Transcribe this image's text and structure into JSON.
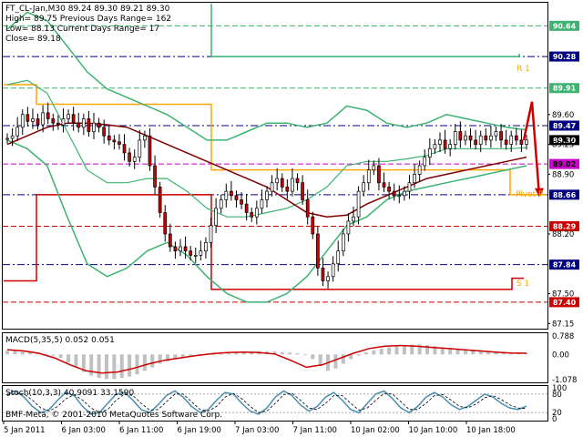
{
  "header": {
    "line1": "FT_CL-Jan,M30  89.24 89.30 89.21 89.30",
    "line2": "High= 89.75   Previous Days Range= 162",
    "line3": "Low= 88.13   Current Days Range= 17",
    "line4": "Close= 89.18"
  },
  "footer": {
    "copyright": "BMF-Meta, © 2001-2010 MetaQuotes Software Corp."
  },
  "pivot_labels": {
    "r1": "R 1",
    "pivot": "Pivot P",
    "s1": "S 1"
  },
  "colors": {
    "candle": "#000000",
    "down_candle": "#cc0000",
    "bollinger": "#3cb371",
    "ma": "#800000",
    "pivot": "#ffa500",
    "level_red": "#cc0000",
    "level_green": "#3cb371",
    "level_blue": "#000080",
    "level_purple": "#cc00cc",
    "tag_black": "#000000",
    "macd_hist": "#c0c0c0",
    "macd_signal": "#cc0000",
    "stoch_main": "#4a8fb0"
  },
  "chart_data": [
    {
      "type": "candlestick",
      "title": "FT_CL-Jan,M30",
      "ylim": [
        87.1,
        90.9
      ],
      "x_tick_labels": [
        "5 Jan 2011",
        "6 Jan 03:00",
        "6 Jan 11:00",
        "6 Jan 19:00",
        "7 Jan 03:00",
        "7 Jan 11:00",
        "10 Jan 02:00",
        "10 Jan 10:00",
        "10 Jan 18:00"
      ],
      "y_tick_labels": [
        {
          "label": "90.64",
          "value": 90.64,
          "style": "green"
        },
        {
          "label": "90.28",
          "value": 90.28,
          "style": "blue"
        },
        {
          "label": "89.91",
          "value": 89.91,
          "style": "green"
        },
        {
          "label": "89.60",
          "value": 89.6,
          "style": "plain"
        },
        {
          "label": "89.47",
          "value": 89.47,
          "style": "blue"
        },
        {
          "label": "89.30",
          "value": 89.3,
          "style": "black"
        },
        {
          "label": "89.25",
          "value": 89.25,
          "style": "plain"
        },
        {
          "label": "89.02",
          "value": 89.02,
          "style": "purple"
        },
        {
          "label": "88.90",
          "value": 88.9,
          "style": "plain"
        },
        {
          "label": "88.66",
          "value": 88.66,
          "style": "blue"
        },
        {
          "label": "88.29",
          "value": 88.29,
          "style": "red"
        },
        {
          "label": "88.20",
          "value": 88.2,
          "style": "plain"
        },
        {
          "label": "87.84",
          "value": 87.84,
          "style": "blue"
        },
        {
          "label": "87.50",
          "value": 87.5,
          "style": "plain"
        },
        {
          "label": "87.40",
          "value": 87.4,
          "style": "red"
        },
        {
          "label": "87.15",
          "value": 87.15,
          "style": "plain"
        }
      ],
      "close": [
        89.32,
        89.35,
        89.45,
        89.6,
        89.52,
        89.55,
        89.48,
        89.62,
        89.55,
        89.5,
        89.48,
        89.55,
        89.6,
        89.5,
        89.45,
        89.55,
        89.4,
        89.5,
        89.45,
        89.35,
        89.3,
        89.28,
        89.25,
        89.15,
        89.05,
        89.1,
        89.3,
        89.35,
        89.0,
        88.75,
        88.45,
        88.2,
        88.05,
        88.0,
        88.05,
        88.0,
        87.95,
        87.95,
        88.0,
        88.1,
        88.3,
        88.5,
        88.6,
        88.7,
        88.65,
        88.6,
        88.55,
        88.45,
        88.4,
        88.5,
        88.6,
        88.7,
        88.8,
        88.85,
        88.75,
        88.7,
        88.85,
        88.8,
        88.6,
        88.4,
        88.2,
        87.8,
        87.65,
        87.7,
        87.85,
        88.0,
        88.2,
        88.35,
        88.4,
        88.7,
        88.8,
        88.95,
        89.0,
        88.8,
        88.75,
        88.7,
        88.65,
        88.65,
        88.7,
        88.8,
        88.9,
        89.0,
        89.1,
        89.2,
        89.25,
        89.3,
        89.2,
        89.25,
        89.4,
        89.3,
        89.35,
        89.3,
        89.25,
        89.35,
        89.3,
        89.35,
        89.4,
        89.3,
        89.25,
        89.35,
        89.3,
        89.25,
        89.3
      ],
      "bollinger_upper": [
        90.6,
        90.8,
        90.7,
        90.4,
        90.1,
        89.9,
        89.8,
        89.7,
        89.6,
        89.45,
        89.3,
        89.3,
        89.4,
        89.5,
        89.5,
        89.45,
        89.5,
        89.7,
        89.65,
        89.5,
        89.45,
        89.5,
        89.6,
        89.55,
        89.5,
        89.45,
        89.42
      ],
      "bollinger_lower": [
        89.3,
        89.2,
        89.0,
        88.4,
        87.85,
        87.7,
        87.8,
        88.0,
        88.1,
        87.95,
        87.7,
        87.5,
        87.4,
        87.4,
        87.5,
        87.7,
        88.0,
        88.3,
        88.4,
        88.6,
        88.7,
        88.75,
        88.8,
        88.85,
        88.9,
        88.95,
        89.0
      ],
      "bollinger_middle": [
        89.95,
        90.0,
        89.85,
        89.4,
        88.95,
        88.8,
        88.8,
        88.85,
        88.85,
        88.7,
        88.5,
        88.4,
        88.4,
        88.45,
        88.5,
        88.6,
        88.75,
        89.0,
        89.05,
        89.05,
        89.08,
        89.12,
        89.2,
        89.2,
        89.2,
        89.2,
        89.21
      ],
      "ma": [
        89.25,
        89.35,
        89.45,
        89.5,
        89.5,
        89.48,
        89.45,
        89.35,
        89.25,
        89.15,
        89.05,
        88.95,
        88.85,
        88.75,
        88.6,
        88.45,
        88.4,
        88.42,
        88.55,
        88.65,
        88.75,
        88.85,
        88.9,
        88.95,
        89.0,
        89.05,
        89.1
      ],
      "forecast_arrow": [
        89.3,
        89.75,
        88.65
      ],
      "levels": {
        "r1": 90.28,
        "pivot": 89.47,
        "s1": 87.55
      }
    },
    {
      "type": "histogram",
      "title": "MACD(5,35,5) 0.052 0.051",
      "ylim": [
        -1.078,
        0.788
      ],
      "y_tick_labels": [
        "0.788",
        "0.00",
        "-1.078"
      ],
      "histogram": [
        0.15,
        0.14,
        0.12,
        0.1,
        0.06,
        0.02,
        -0.05,
        -0.15,
        -0.35,
        -0.55,
        -0.75,
        -0.9,
        -1.0,
        -1.05,
        -1.05,
        -1.0,
        -0.95,
        -0.85,
        -0.7,
        -0.55,
        -0.4,
        -0.3,
        -0.2,
        -0.15,
        -0.1,
        -0.05,
        -0.02,
        0.0,
        0.02,
        0.05,
        0.08,
        0.1,
        0.12,
        0.13,
        0.13,
        0.12,
        0.1,
        0.08,
        0.05,
        0.0,
        -0.2,
        -0.5,
        -0.7,
        -0.6,
        -0.4,
        -0.2,
        -0.05,
        0.08,
        0.18,
        0.25,
        0.3,
        0.35,
        0.4,
        0.42,
        0.42,
        0.4,
        0.35,
        0.3,
        0.28,
        0.25,
        0.22,
        0.2,
        0.18,
        0.15,
        0.12,
        0.1,
        0.08,
        0.06,
        0.05
      ],
      "signal": [
        0.2,
        0.15,
        0.05,
        -0.15,
        -0.45,
        -0.7,
        -0.8,
        -0.75,
        -0.6,
        -0.4,
        -0.25,
        -0.15,
        -0.05,
        0.03,
        0.08,
        0.1,
        0.08,
        0.02,
        -0.25,
        -0.55,
        -0.45,
        -0.2,
        0.05,
        0.25,
        0.35,
        0.38,
        0.35,
        0.3,
        0.25,
        0.2,
        0.15,
        0.1,
        0.06,
        0.05
      ]
    },
    {
      "type": "line",
      "title": "Stoch(10,3,3) 40.9091 33.1590",
      "ylim": [
        0,
        100
      ],
      "y_tick_labels": [
        "100",
        "80",
        "20",
        "0"
      ],
      "main": [
        80,
        90,
        70,
        40,
        20,
        30,
        60,
        85,
        75,
        40,
        15,
        20,
        50,
        80,
        85,
        60,
        30,
        20,
        45,
        75,
        90,
        70,
        40,
        20,
        30,
        60,
        85,
        80,
        50,
        25,
        15,
        35,
        70,
        90,
        75,
        45,
        25,
        40,
        70,
        85,
        60,
        30,
        20,
        50,
        80,
        90,
        65,
        35,
        20,
        40,
        70,
        85,
        70,
        45,
        30,
        40,
        60,
        80,
        70,
        50,
        35,
        30,
        41
      ],
      "signal": [
        75,
        82,
        80,
        60,
        35,
        25,
        40,
        65,
        78,
        60,
        35,
        20,
        30,
        60,
        80,
        75,
        50,
        28,
        30,
        55,
        80,
        80,
        55,
        30,
        25,
        40,
        70,
        82,
        65,
        40,
        20,
        25,
        50,
        78,
        82,
        60,
        35,
        30,
        50,
        75,
        75,
        50,
        28,
        35,
        60,
        82,
        80,
        55,
        30,
        30,
        50,
        75,
        78,
        60,
        40,
        35,
        48,
        68,
        75,
        62,
        45,
        35,
        33
      ]
    }
  ]
}
